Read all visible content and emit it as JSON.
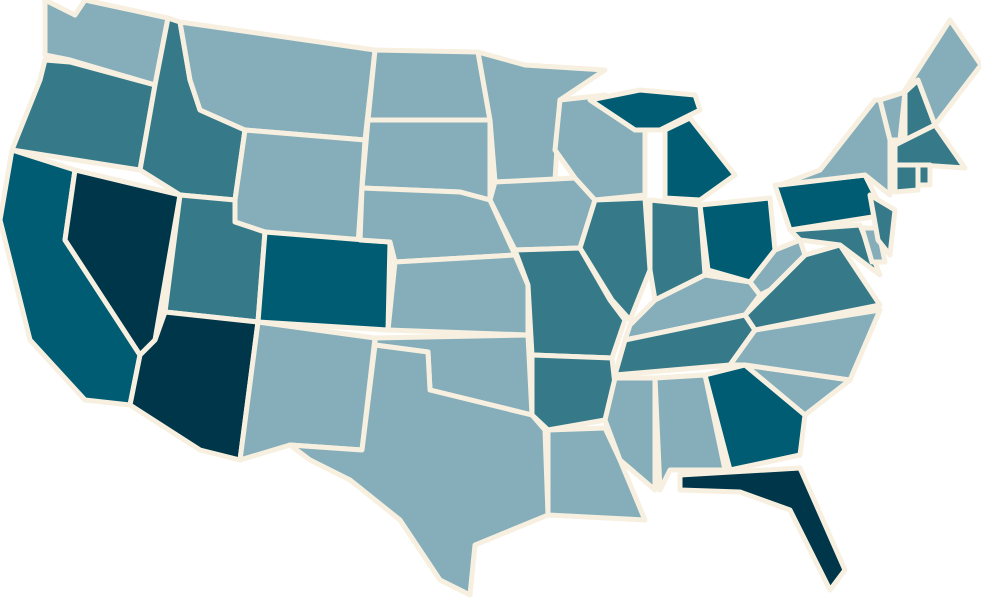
{
  "map": {
    "type": "choropleth",
    "region": "United States",
    "border_color": "#f7f0e0",
    "level_colors": [
      "#86aeba",
      "#367a8a",
      "#005c72",
      "#00364a"
    ],
    "states": [
      {
        "id": "WA",
        "level": 0
      },
      {
        "id": "OR",
        "level": 1
      },
      {
        "id": "CA",
        "level": 2
      },
      {
        "id": "NV",
        "level": 3
      },
      {
        "id": "ID",
        "level": 1
      },
      {
        "id": "MT",
        "level": 0
      },
      {
        "id": "WY",
        "level": 0
      },
      {
        "id": "UT",
        "level": 1
      },
      {
        "id": "AZ",
        "level": 3
      },
      {
        "id": "CO",
        "level": 2
      },
      {
        "id": "NM",
        "level": 0
      },
      {
        "id": "ND",
        "level": 0
      },
      {
        "id": "SD",
        "level": 0
      },
      {
        "id": "NE",
        "level": 0
      },
      {
        "id": "KS",
        "level": 0
      },
      {
        "id": "OK",
        "level": 0
      },
      {
        "id": "TX",
        "level": 0
      },
      {
        "id": "MN",
        "level": 0
      },
      {
        "id": "IA",
        "level": 0
      },
      {
        "id": "MO",
        "level": 1
      },
      {
        "id": "AR",
        "level": 1
      },
      {
        "id": "LA",
        "level": 0
      },
      {
        "id": "WI",
        "level": 0
      },
      {
        "id": "IL",
        "level": 1
      },
      {
        "id": "MI-UP",
        "level": 2
      },
      {
        "id": "MI",
        "level": 2
      },
      {
        "id": "IN",
        "level": 1
      },
      {
        "id": "OH",
        "level": 2
      },
      {
        "id": "KY",
        "level": 0
      },
      {
        "id": "TN",
        "level": 1
      },
      {
        "id": "MS",
        "level": 0
      },
      {
        "id": "AL",
        "level": 0
      },
      {
        "id": "GA",
        "level": 2
      },
      {
        "id": "FL",
        "level": 3
      },
      {
        "id": "SC",
        "level": 0
      },
      {
        "id": "NC",
        "level": 0
      },
      {
        "id": "VA",
        "level": 1
      },
      {
        "id": "WV",
        "level": 0
      },
      {
        "id": "PA",
        "level": 2
      },
      {
        "id": "NY",
        "level": 0
      },
      {
        "id": "MD",
        "level": 1
      },
      {
        "id": "DE",
        "level": 0
      },
      {
        "id": "NJ",
        "level": 1
      },
      {
        "id": "VT",
        "level": 0
      },
      {
        "id": "NH",
        "level": 1
      },
      {
        "id": "ME",
        "level": 0
      },
      {
        "id": "MA",
        "level": 1
      },
      {
        "id": "CT",
        "level": 1
      },
      {
        "id": "RI",
        "level": 1
      }
    ]
  }
}
